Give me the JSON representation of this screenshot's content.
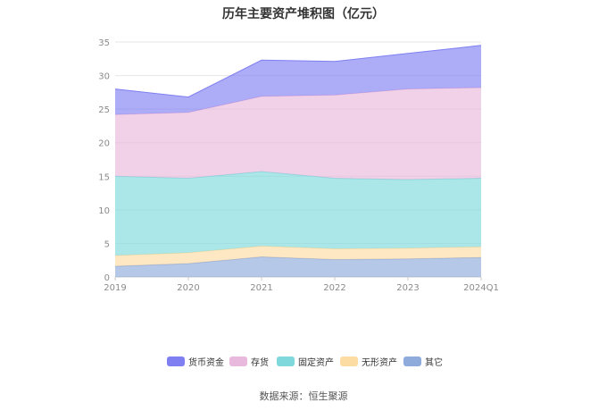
{
  "chart_data": {
    "type": "area",
    "stacked": true,
    "title": "历年主要资产堆积图（亿元）",
    "categories": [
      "2019",
      "2020",
      "2021",
      "2022",
      "2023",
      "2024Q1"
    ],
    "ylim": [
      0,
      35
    ],
    "yticks": [
      "0",
      "5",
      "10",
      "15",
      "20",
      "25",
      "30",
      "35"
    ],
    "grid": true,
    "legend_position": "bottom",
    "series": [
      {
        "name": "其它",
        "color": "#8fabdc",
        "values": [
          1.6,
          2.0,
          3.0,
          2.6,
          2.7,
          2.9
        ]
      },
      {
        "name": "无形资产",
        "color": "#fddca4",
        "values": [
          1.6,
          1.6,
          1.6,
          1.6,
          1.6,
          1.6
        ]
      },
      {
        "name": "固定资产",
        "color": "#7ed8dc",
        "values": [
          11.8,
          11.1,
          11.1,
          10.5,
          10.2,
          10.2
        ]
      },
      {
        "name": "存货",
        "color": "#e8b9dc",
        "values": [
          9.2,
          9.8,
          11.2,
          12.4,
          13.5,
          13.5
        ]
      },
      {
        "name": "货币资金",
        "color": "#7f7ff2",
        "values": [
          3.8,
          2.3,
          5.4,
          5.0,
          5.3,
          6.3
        ]
      }
    ],
    "legend_order": [
      "货币资金",
      "存货",
      "固定资产",
      "无形资产",
      "其它"
    ]
  },
  "source": "数据来源：恒生聚源"
}
